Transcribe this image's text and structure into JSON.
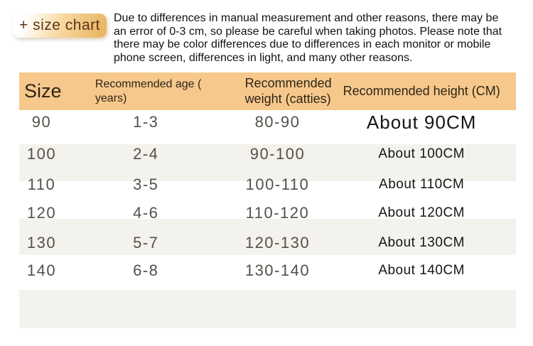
{
  "badge": {
    "label": "+ size chart"
  },
  "disclaimer": "Due to differences in manual measurement and other reasons, there may be an error of 0-3 cm, so please be careful when taking photos. Please note that there may be color differences due to differences in each monitor or mobile phone screen, differences in light, and many other reasons.",
  "colors": {
    "header_bg": "#f6c88c",
    "stripe_bg": "#f3f2ec",
    "badge_bg": "#e9b765",
    "badge_text": "#5c3413",
    "heading_text": "#2e2517",
    "data_text": "#54504a",
    "black_text": "#171513"
  },
  "table": {
    "columns": [
      {
        "id": "size",
        "label": "Size"
      },
      {
        "id": "age",
        "label": "Recommended age ( years)"
      },
      {
        "id": "weight",
        "label": "Recommended weight (catties)"
      },
      {
        "id": "height",
        "label": "Recommended height (CM)"
      }
    ],
    "rows": [
      {
        "size": "90",
        "age": "1-3",
        "weight": "80-90",
        "height": "About 90CM"
      },
      {
        "size": "100",
        "age": "2-4",
        "weight": "90-100",
        "height": "About 100CM"
      },
      {
        "size": "110",
        "age": "3-5",
        "weight": "100-110",
        "height": "About 110CM"
      },
      {
        "size": "120",
        "age": "4-6",
        "weight": "110-120",
        "height": "About 120CM"
      },
      {
        "size": "130",
        "age": "5-7",
        "weight": "120-130",
        "height": "About 130CM"
      },
      {
        "size": "140",
        "age": "6-8",
        "weight": "130-140",
        "height": "About 140CM"
      }
    ]
  }
}
